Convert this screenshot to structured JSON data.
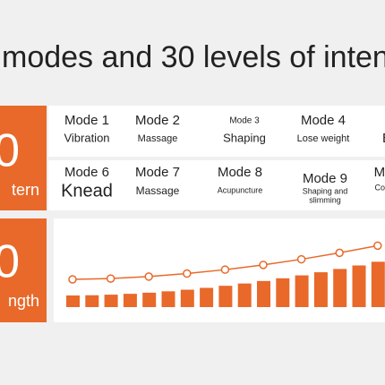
{
  "header": {
    "title": "modes and 30 levels of inten"
  },
  "panels": [
    {
      "number": "0",
      "label": "tern"
    },
    {
      "number": "0",
      "label": "ngth"
    }
  ],
  "modes": [
    {
      "name": "Mode 1",
      "desc": [
        "Vibration"
      ]
    },
    {
      "name": "Mode 2",
      "desc": [
        "Massage"
      ]
    },
    {
      "name": "Mode 3",
      "desc": [
        "Shaping"
      ]
    },
    {
      "name": "Mode 4",
      "desc": [
        "Lose weight"
      ]
    },
    {
      "desc": [
        "B"
      ]
    },
    {
      "name": "Mode 6",
      "desc": [
        "Knead"
      ]
    },
    {
      "name": "Mode 7",
      "desc": [
        "Massage"
      ]
    },
    {
      "name": "Mode 8",
      "desc": [
        "Acupuncture"
      ]
    },
    {
      "name": "Mode 9",
      "desc": [
        "Shaping and",
        "slimming"
      ]
    },
    {
      "name": "Mo",
      "desc": [
        "Com"
      ]
    }
  ]
}
